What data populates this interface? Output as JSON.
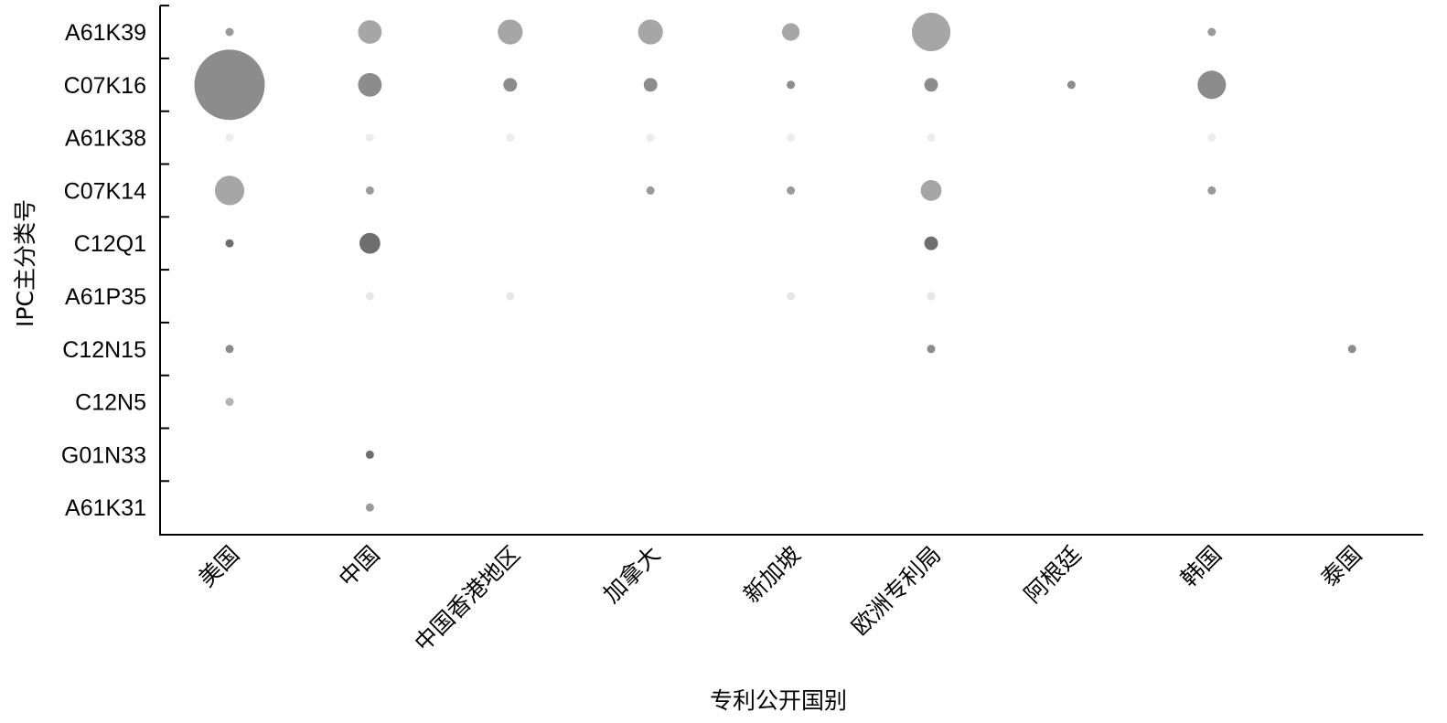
{
  "chart_data": {
    "type": "scatter",
    "subtype": "bubble",
    "xlabel": "专利公开国别",
    "ylabel": "IPC主分类号",
    "categories": [
      "美国",
      "中国",
      "中国香港地区",
      "加拿大",
      "新加坡",
      "欧洲专利局",
      "阿根廷",
      "韩国",
      "泰国"
    ],
    "y_categories": [
      "A61K39",
      "C07K16",
      "A61K38",
      "C07K14",
      "C12Q1",
      "A61P35",
      "C12N15",
      "C12N5",
      "G01N33",
      "A61K31"
    ],
    "grid": false,
    "legend": "none",
    "points": [
      {
        "x": "美国",
        "y": "A61K39",
        "size": 1,
        "color": "#9a9a9a"
      },
      {
        "x": "中国",
        "y": "A61K39",
        "size": 9,
        "color": "#a6a6a6"
      },
      {
        "x": "中国香港地区",
        "y": "A61K39",
        "size": 10,
        "color": "#a6a6a6"
      },
      {
        "x": "加拿大",
        "y": "A61K39",
        "size": 10,
        "color": "#a6a6a6"
      },
      {
        "x": "新加坡",
        "y": "A61K39",
        "size": 5,
        "color": "#a6a6a6"
      },
      {
        "x": "欧洲专利局",
        "y": "A61K39",
        "size": 24,
        "color": "#a6a6a6"
      },
      {
        "x": "韩国",
        "y": "A61K39",
        "size": 1,
        "color": "#9a9a9a"
      },
      {
        "x": "美国",
        "y": "C07K16",
        "size": 80,
        "color": "#8c8c8c"
      },
      {
        "x": "中国",
        "y": "C07K16",
        "size": 9,
        "color": "#8c8c8c"
      },
      {
        "x": "中国香港地区",
        "y": "C07K16",
        "size": 3,
        "color": "#8c8c8c"
      },
      {
        "x": "加拿大",
        "y": "C07K16",
        "size": 3,
        "color": "#8c8c8c"
      },
      {
        "x": "新加坡",
        "y": "C07K16",
        "size": 1,
        "color": "#8c8c8c"
      },
      {
        "x": "欧洲专利局",
        "y": "C07K16",
        "size": 3,
        "color": "#8c8c8c"
      },
      {
        "x": "阿根廷",
        "y": "C07K16",
        "size": 1,
        "color": "#8c8c8c"
      },
      {
        "x": "韩国",
        "y": "C07K16",
        "size": 13,
        "color": "#8c8c8c"
      },
      {
        "x": "美国",
        "y": "A61K38",
        "size": 1,
        "color": "#ececec"
      },
      {
        "x": "中国",
        "y": "A61K38",
        "size": 1,
        "color": "#ececec"
      },
      {
        "x": "中国香港地区",
        "y": "A61K38",
        "size": 1,
        "color": "#ececec"
      },
      {
        "x": "加拿大",
        "y": "A61K38",
        "size": 1,
        "color": "#ececec"
      },
      {
        "x": "新加坡",
        "y": "A61K38",
        "size": 1,
        "color": "#ececec"
      },
      {
        "x": "欧洲专利局",
        "y": "A61K38",
        "size": 1,
        "color": "#ececec"
      },
      {
        "x": "韩国",
        "y": "A61K38",
        "size": 1,
        "color": "#ececec"
      },
      {
        "x": "美国",
        "y": "C07K14",
        "size": 14,
        "color": "#a6a6a6"
      },
      {
        "x": "中国",
        "y": "C07K14",
        "size": 1,
        "color": "#9a9a9a"
      },
      {
        "x": "加拿大",
        "y": "C07K14",
        "size": 1,
        "color": "#9a9a9a"
      },
      {
        "x": "新加坡",
        "y": "C07K14",
        "size": 1,
        "color": "#9a9a9a"
      },
      {
        "x": "欧洲专利局",
        "y": "C07K14",
        "size": 7,
        "color": "#a6a6a6"
      },
      {
        "x": "韩国",
        "y": "C07K14",
        "size": 1,
        "color": "#9a9a9a"
      },
      {
        "x": "美国",
        "y": "C12Q1",
        "size": 1,
        "color": "#6e6e6e"
      },
      {
        "x": "中国",
        "y": "C12Q1",
        "size": 7,
        "color": "#6e6e6e"
      },
      {
        "x": "欧洲专利局",
        "y": "C12Q1",
        "size": 3,
        "color": "#6e6e6e"
      },
      {
        "x": "中国",
        "y": "A61P35",
        "size": 1,
        "color": "#e6e6e6"
      },
      {
        "x": "中国香港地区",
        "y": "A61P35",
        "size": 1,
        "color": "#e6e6e6"
      },
      {
        "x": "新加坡",
        "y": "A61P35",
        "size": 1,
        "color": "#e6e6e6"
      },
      {
        "x": "欧洲专利局",
        "y": "A61P35",
        "size": 1,
        "color": "#e6e6e6"
      },
      {
        "x": "美国",
        "y": "C12N15",
        "size": 1,
        "color": "#8c8c8c"
      },
      {
        "x": "欧洲专利局",
        "y": "C12N15",
        "size": 1,
        "color": "#8c8c8c"
      },
      {
        "x": "泰国",
        "y": "C12N15",
        "size": 1,
        "color": "#8c8c8c"
      },
      {
        "x": "美国",
        "y": "C12N5",
        "size": 1,
        "color": "#b4b4b4"
      },
      {
        "x": "中国",
        "y": "G01N33",
        "size": 1,
        "color": "#6e6e6e"
      },
      {
        "x": "中国",
        "y": "A61K31",
        "size": 1,
        "color": "#9a9a9a"
      }
    ]
  }
}
